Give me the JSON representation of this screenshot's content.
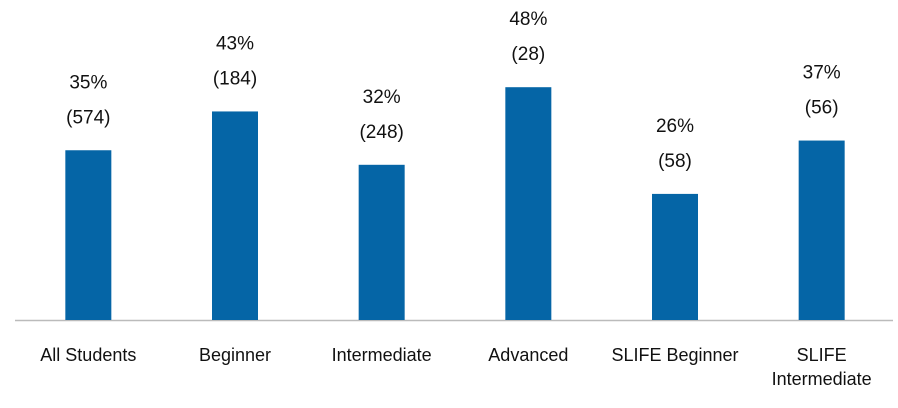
{
  "chart_data": {
    "type": "bar",
    "categories": [
      "All Students",
      "Beginner",
      "Intermediate",
      "Advanced",
      "SLIFE Beginner",
      "SLIFE Intermediate"
    ],
    "values": [
      35,
      43,
      32,
      48,
      26,
      37
    ],
    "value_labels": [
      "35%",
      "43%",
      "32%",
      "48%",
      "26%",
      "37%"
    ],
    "count_labels": [
      "(574)",
      "(184)",
      "(248)",
      "(28)",
      "(58)",
      "(56)"
    ],
    "color": "#0565a6",
    "ylim": [
      0,
      50
    ]
  }
}
